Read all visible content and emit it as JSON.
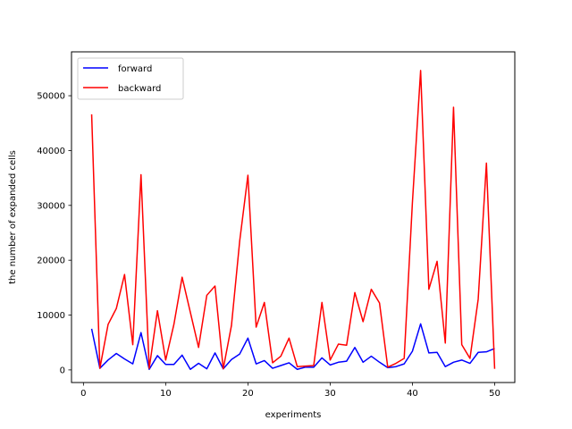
{
  "chart_data": {
    "type": "line",
    "xlabel": "experiments",
    "ylabel": "the number of expanded cells",
    "xlim": [
      -1.45,
      52.45
    ],
    "ylim": [
      -2300,
      58000
    ],
    "xticks": [
      0,
      10,
      20,
      30,
      40,
      50
    ],
    "yticks": [
      0,
      10000,
      20000,
      30000,
      40000,
      50000
    ],
    "legend_position": "upper-left",
    "x": [
      1,
      2,
      3,
      4,
      5,
      6,
      7,
      8,
      9,
      10,
      11,
      12,
      13,
      14,
      15,
      16,
      17,
      18,
      19,
      20,
      21,
      22,
      23,
      24,
      25,
      26,
      27,
      28,
      29,
      30,
      31,
      32,
      33,
      34,
      35,
      36,
      37,
      38,
      39,
      40,
      41,
      42,
      43,
      44,
      45,
      46,
      47,
      48,
      49,
      50
    ],
    "series": [
      {
        "name": "forward",
        "color": "#0000ff",
        "values": [
          7500,
          300,
          1800,
          3000,
          2000,
          1100,
          6800,
          100,
          2600,
          1000,
          1000,
          2700,
          100,
          1200,
          200,
          3100,
          200,
          1900,
          2900,
          5800,
          1100,
          1700,
          300,
          800,
          1300,
          100,
          500,
          500,
          2200,
          900,
          1400,
          1600,
          4100,
          1400,
          2500,
          1400,
          400,
          600,
          1100,
          3400,
          8400,
          3100,
          3200,
          600,
          1400,
          1800,
          1200,
          3200,
          3300,
          3900
        ]
      },
      {
        "name": "backward",
        "color": "#ff0000",
        "values": [
          46600,
          300,
          8300,
          11200,
          17400,
          4600,
          35600,
          300,
          10800,
          1800,
          8300,
          16900,
          10500,
          4100,
          13600,
          15300,
          200,
          8100,
          23500,
          35500,
          7800,
          12300,
          1300,
          2500,
          5800,
          600,
          700,
          800,
          12300,
          1800,
          4700,
          4500,
          14100,
          8800,
          14700,
          12200,
          500,
          1200,
          2100,
          30500,
          54600,
          14700,
          19800,
          4900,
          47900,
          4600,
          2100,
          12900,
          37700,
          200
        ]
      }
    ]
  }
}
